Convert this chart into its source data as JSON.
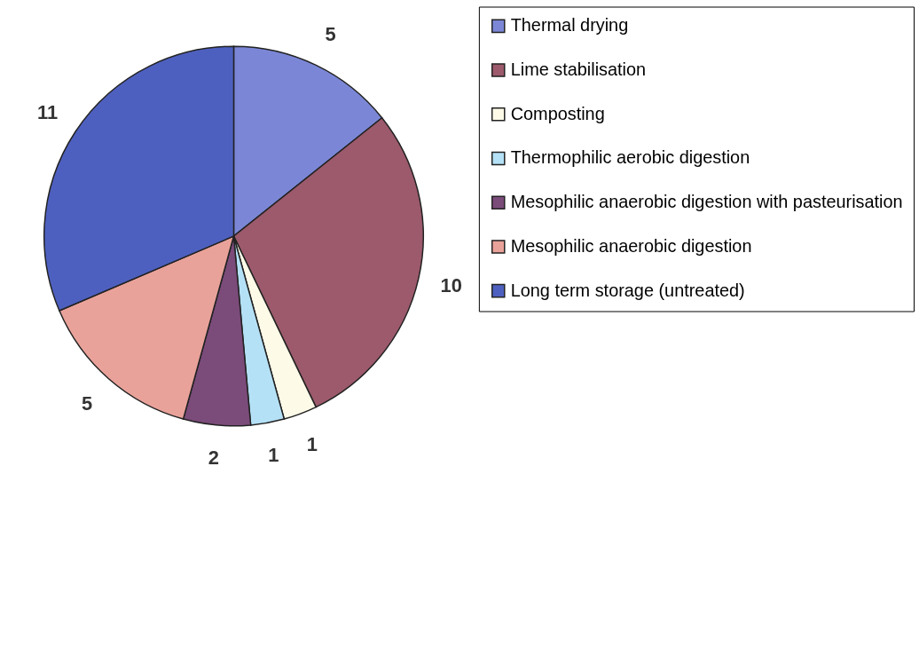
{
  "chart_data": {
    "type": "pie",
    "categories": [
      "Thermal drying",
      "Lime stabilisation",
      "Composting",
      "Thermophilic aerobic digestion",
      "Mesophilic anaerobic digestion with pasteurisation",
      "Mesophilic anaerobic digestion",
      "Long term storage (untreated)"
    ],
    "values": [
      5,
      10,
      1,
      1,
      2,
      5,
      11
    ],
    "colors": [
      "#7b87d6",
      "#9c5a6c",
      "#fdfbe8",
      "#b5e1f6",
      "#7b4b7a",
      "#e9a29a",
      "#4e60bf"
    ],
    "data_labels": true,
    "legend": "right"
  }
}
